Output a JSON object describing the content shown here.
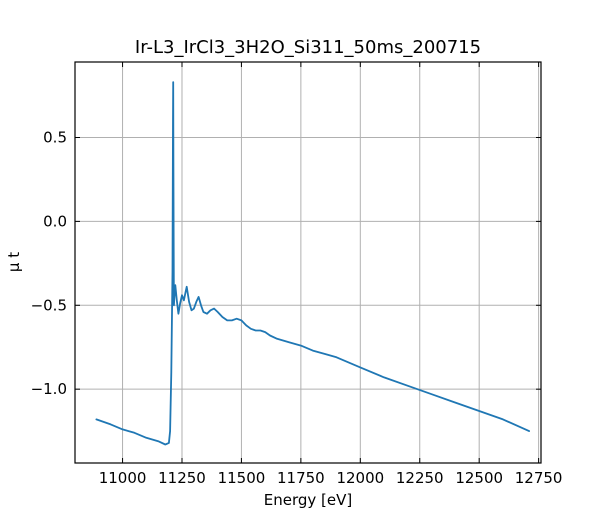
{
  "chart_data": {
    "type": "line",
    "title": "Ir-L3_IrCl3_3H2O_Si311_50ms_200715",
    "xlabel": "Energy [eV]",
    "ylabel": "μ t",
    "xlim": [
      10800,
      12760
    ],
    "ylim": [
      -1.44,
      0.95
    ],
    "xticks": [
      11000,
      11250,
      11500,
      11750,
      12000,
      12250,
      12500,
      12750
    ],
    "yticks": [
      0.5,
      0.0,
      -0.5,
      -1.0
    ],
    "xtick_labels": [
      "11000",
      "11250",
      "11500",
      "11750",
      "12000",
      "12250",
      "12500",
      "12750"
    ],
    "ytick_labels": [
      "0.5",
      "0.0",
      "−0.5",
      "−1.0"
    ],
    "grid": true,
    "series": [
      {
        "color": "#1f77b4",
        "x": [
          10890,
          10950,
          11000,
          11050,
          11100,
          11150,
          11180,
          11195,
          11200,
          11205,
          11210,
          11212,
          11213,
          11214,
          11215,
          11216,
          11218,
          11222,
          11228,
          11235,
          11242,
          11250,
          11258,
          11265,
          11270,
          11280,
          11290,
          11300,
          11310,
          11320,
          11330,
          11340,
          11355,
          11370,
          11385,
          11400,
          11420,
          11440,
          11460,
          11480,
          11500,
          11520,
          11540,
          11560,
          11580,
          11600,
          11620,
          11650,
          11700,
          11750,
          11800,
          11850,
          11900,
          12000,
          12100,
          12200,
          12300,
          12400,
          12500,
          12600,
          12710
        ],
        "y": [
          -1.18,
          -1.21,
          -1.24,
          -1.26,
          -1.29,
          -1.31,
          -1.33,
          -1.32,
          -1.25,
          -0.9,
          -0.3,
          0.6,
          0.83,
          0.35,
          -0.2,
          -0.5,
          -0.45,
          -0.38,
          -0.47,
          -0.55,
          -0.49,
          -0.44,
          -0.47,
          -0.42,
          -0.39,
          -0.48,
          -0.53,
          -0.52,
          -0.48,
          -0.45,
          -0.5,
          -0.54,
          -0.55,
          -0.53,
          -0.52,
          -0.54,
          -0.57,
          -0.59,
          -0.59,
          -0.58,
          -0.59,
          -0.62,
          -0.64,
          -0.65,
          -0.65,
          -0.66,
          -0.68,
          -0.7,
          -0.72,
          -0.74,
          -0.77,
          -0.79,
          -0.81,
          -0.87,
          -0.93,
          -0.98,
          -1.03,
          -1.08,
          -1.13,
          -1.18,
          -1.25
        ]
      }
    ]
  }
}
